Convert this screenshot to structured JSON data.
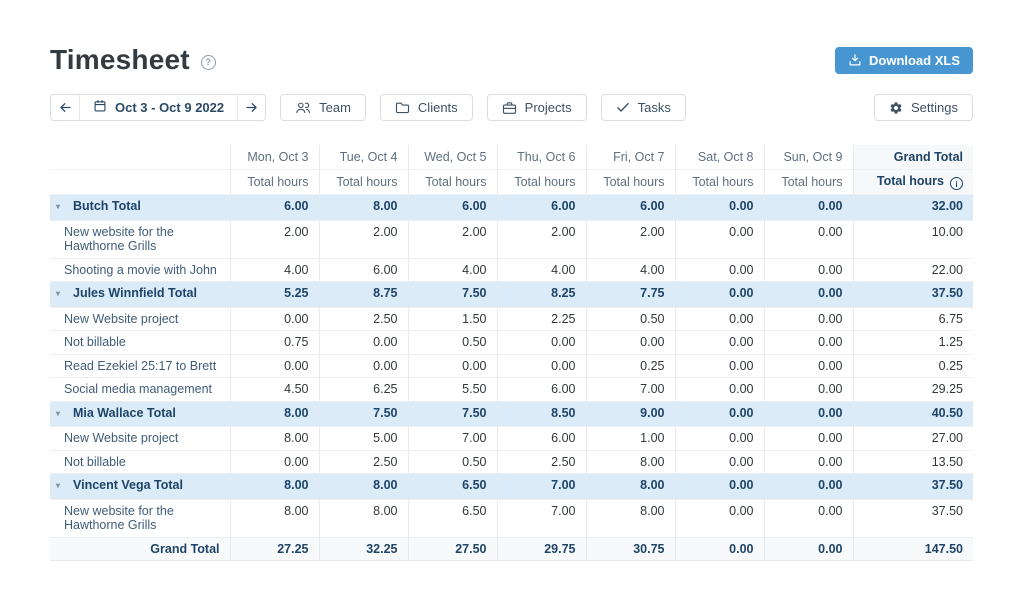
{
  "page": {
    "title": "Timesheet"
  },
  "header": {
    "download_label": "Download XLS"
  },
  "toolbar": {
    "date_range": "Oct 3 - Oct 9 2022",
    "filters": [
      {
        "label": "Team",
        "icon": "team-icon"
      },
      {
        "label": "Clients",
        "icon": "folder-icon"
      },
      {
        "label": "Projects",
        "icon": "briefcase-icon"
      },
      {
        "label": "Tasks",
        "icon": "check-icon"
      }
    ],
    "settings_label": "Settings"
  },
  "table": {
    "day_columns": [
      "Mon, Oct 3",
      "Tue, Oct 4",
      "Wed, Oct 5",
      "Thu, Oct 6",
      "Fri, Oct 7",
      "Sat, Oct 8",
      "Sun, Oct 9"
    ],
    "subheader": "Total hours",
    "grand_total_header": "Grand Total",
    "grand_total_subheader": "Total hours",
    "groups": [
      {
        "label": "Butch Total",
        "values": [
          "6.00",
          "8.00",
          "6.00",
          "6.00",
          "6.00",
          "0.00",
          "0.00",
          "32.00"
        ],
        "rows": [
          {
            "label": "New website for the Hawthorne Grills",
            "values": [
              "2.00",
              "2.00",
              "2.00",
              "2.00",
              "2.00",
              "0.00",
              "0.00",
              "10.00"
            ]
          },
          {
            "label": "Shooting a movie with John",
            "values": [
              "4.00",
              "6.00",
              "4.00",
              "4.00",
              "4.00",
              "0.00",
              "0.00",
              "22.00"
            ]
          }
        ]
      },
      {
        "label": "Jules Winnfield Total",
        "values": [
          "5.25",
          "8.75",
          "7.50",
          "8.25",
          "7.75",
          "0.00",
          "0.00",
          "37.50"
        ],
        "rows": [
          {
            "label": "New Website project",
            "values": [
              "0.00",
              "2.50",
              "1.50",
              "2.25",
              "0.50",
              "0.00",
              "0.00",
              "6.75"
            ]
          },
          {
            "label": "Not billable",
            "values": [
              "0.75",
              "0.00",
              "0.50",
              "0.00",
              "0.00",
              "0.00",
              "0.00",
              "1.25"
            ]
          },
          {
            "label": "Read Ezekiel 25:17 to Brett",
            "values": [
              "0.00",
              "0.00",
              "0.00",
              "0.00",
              "0.25",
              "0.00",
              "0.00",
              "0.25"
            ]
          },
          {
            "label": "Social media management",
            "values": [
              "4.50",
              "6.25",
              "5.50",
              "6.00",
              "7.00",
              "0.00",
              "0.00",
              "29.25"
            ]
          }
        ]
      },
      {
        "label": "Mia Wallace Total",
        "values": [
          "8.00",
          "7.50",
          "7.50",
          "8.50",
          "9.00",
          "0.00",
          "0.00",
          "40.50"
        ],
        "rows": [
          {
            "label": "New Website project",
            "values": [
              "8.00",
              "5.00",
              "7.00",
              "6.00",
              "1.00",
              "0.00",
              "0.00",
              "27.00"
            ]
          },
          {
            "label": "Not billable",
            "values": [
              "0.00",
              "2.50",
              "0.50",
              "2.50",
              "8.00",
              "0.00",
              "0.00",
              "13.50"
            ]
          }
        ]
      },
      {
        "label": "Vincent Vega Total",
        "values": [
          "8.00",
          "8.00",
          "6.50",
          "7.00",
          "8.00",
          "0.00",
          "0.00",
          "37.50"
        ],
        "rows": [
          {
            "label": "New website for the Hawthorne Grills",
            "values": [
              "8.00",
              "8.00",
              "6.50",
              "7.00",
              "8.00",
              "0.00",
              "0.00",
              "37.50"
            ]
          }
        ]
      }
    ],
    "footer": {
      "label": "Grand Total",
      "values": [
        "27.25",
        "32.25",
        "27.50",
        "29.75",
        "30.75",
        "0.00",
        "0.00",
        "147.50"
      ]
    }
  },
  "colors": {
    "accent_blue": "#4796d2",
    "group_row_bg": "#dcebf8",
    "navy_text": "#1e4468",
    "header_text": "#5f6f7f",
    "footer_bg": "#f8f9fb",
    "border": "#e6eaee"
  }
}
